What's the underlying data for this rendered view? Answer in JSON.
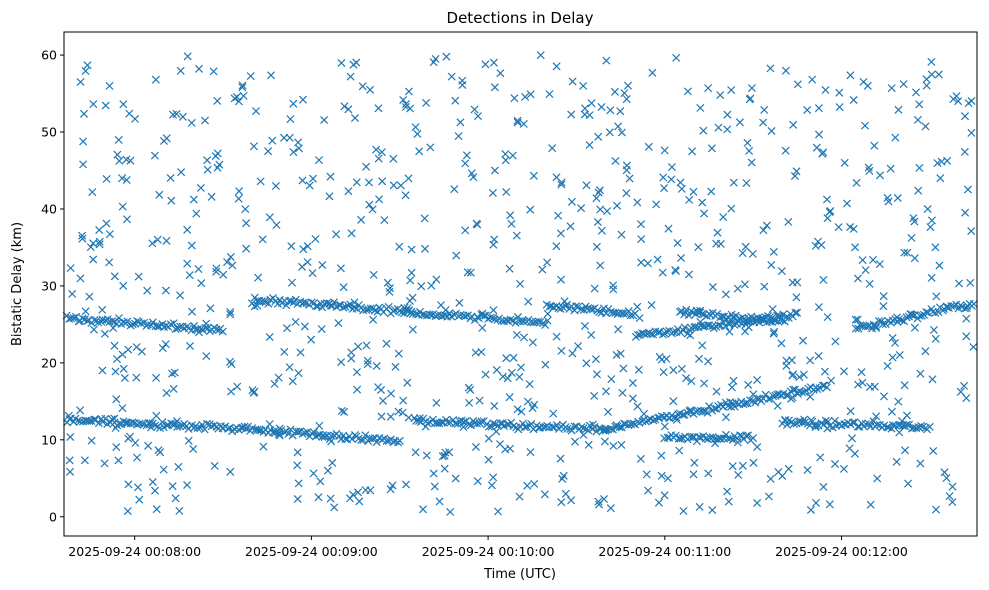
{
  "chart_data": {
    "type": "scatter",
    "title": "Detections in Delay",
    "xlabel": "Time (UTC)",
    "ylabel": "Bistatic Delay (km)",
    "x_tick_labels": [
      "2025-09-24 00:08:00",
      "2025-09-24 00:09:00",
      "2025-09-24 00:10:00",
      "2025-09-24 00:11:00",
      "2025-09-24 00:12:00"
    ],
    "x_ticks": [
      "00:08:00",
      "00:09:00",
      "00:10:00",
      "00:11:00",
      "00:12:00"
    ],
    "y_ticks": [
      0,
      10,
      20,
      30,
      40,
      50,
      60
    ],
    "xlim": [
      "00:07:36",
      "00:12:46"
    ],
    "ylim": [
      -2.5,
      63
    ],
    "marker": "x",
    "color": "#1f77b4",
    "grid": false,
    "tracks": [
      {
        "start": "00:07:37",
        "end": "00:08:30",
        "delay_start": 12.6,
        "delay_end": 11.6
      },
      {
        "start": "00:08:30",
        "end": "00:09:30",
        "delay_start": 11.6,
        "delay_end": 9.8
      },
      {
        "start": "00:09:35",
        "end": "00:10:40",
        "delay_start": 12.4,
        "delay_end": 11.4
      },
      {
        "start": "00:10:40",
        "end": "00:11:55",
        "delay_start": 11.4,
        "delay_end": 17.0
      },
      {
        "start": "00:11:40",
        "end": "00:12:30",
        "delay_start": 12.4,
        "delay_end": 11.6
      },
      {
        "start": "00:11:00",
        "end": "00:11:30",
        "delay_start": 10.2,
        "delay_end": 10.3
      },
      {
        "start": "00:07:37",
        "end": "00:08:30",
        "delay_start": 25.8,
        "delay_end": 24.2
      },
      {
        "start": "00:08:40",
        "end": "00:10:20",
        "delay_start": 28.2,
        "delay_end": 25.2
      },
      {
        "start": "00:10:20",
        "end": "00:10:50",
        "delay_start": 27.5,
        "delay_end": 26.4
      },
      {
        "start": "00:10:50",
        "end": "00:11:45",
        "delay_start": 23.5,
        "delay_end": 26.2
      },
      {
        "start": "00:11:05",
        "end": "00:11:40",
        "delay_start": 26.6,
        "delay_end": 25.4
      },
      {
        "start": "00:12:05",
        "end": "00:12:45",
        "delay_start": 24.5,
        "delay_end": 27.8
      }
    ],
    "clutter": {
      "x_range": [
        "00:07:37",
        "00:12:45"
      ],
      "delay_range": [
        0.5,
        60
      ]
    }
  }
}
